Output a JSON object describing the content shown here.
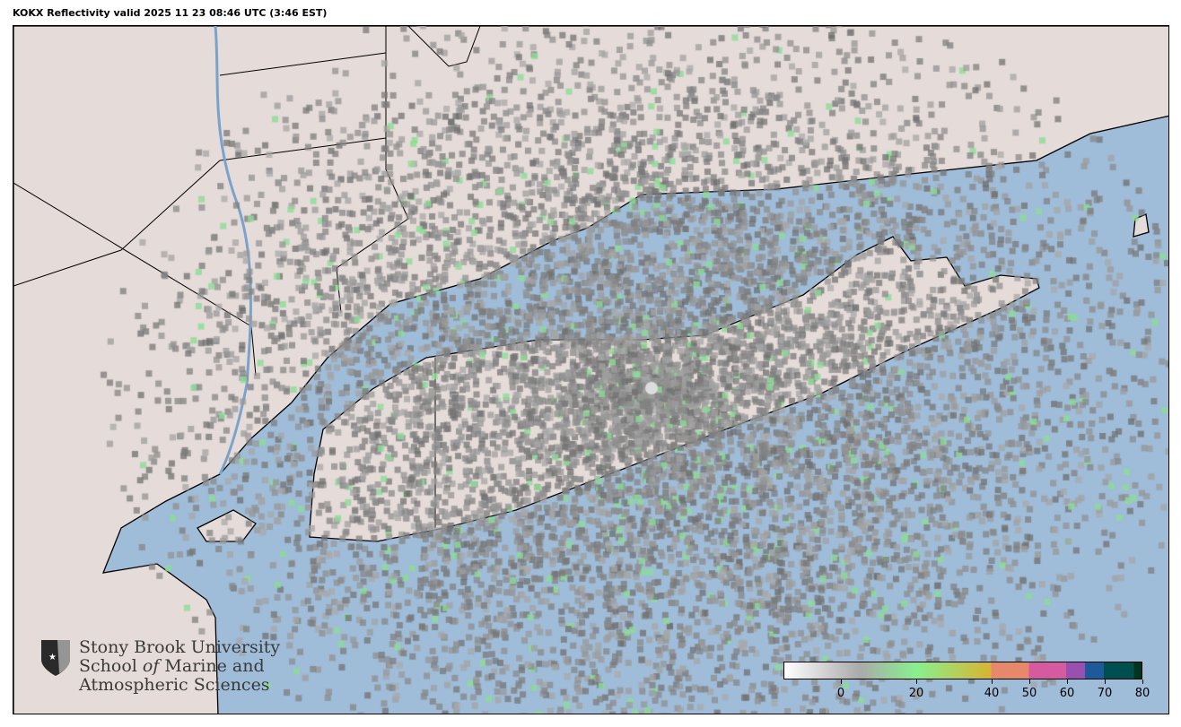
{
  "title": "KOKX Reflectivity valid 2025 11 23 08:46 UTC (3:46 EST)",
  "logo": {
    "line1": "Stony Brook University",
    "line2a": "School ",
    "line2b": "of",
    "line2c": " Marine and",
    "line3": "Atmospheric Sciences"
  },
  "colorbar": {
    "range": [
      -15,
      80
    ],
    "ticks": [
      "0",
      "20",
      "40",
      "50",
      "60",
      "70",
      "80"
    ],
    "tick_values": [
      0,
      20,
      40,
      50,
      60,
      70,
      80
    ],
    "colors": {
      "gray_low": "#ffffff",
      "gray_high": "#aaaaaa",
      "green": "#88f08f",
      "yellow": "#d8b430",
      "orange": "#e8886a",
      "pink": "#d55aa0",
      "purple": "#9a50b0",
      "blue": "#1e5a9a",
      "teal": "#004f50",
      "dark": "#00361f"
    }
  },
  "colors": {
    "ocean": "#9fbcd8",
    "land": "#e5dbd8",
    "echo": "#8a8a8a"
  },
  "radar": {
    "site": "KOKX"
  }
}
